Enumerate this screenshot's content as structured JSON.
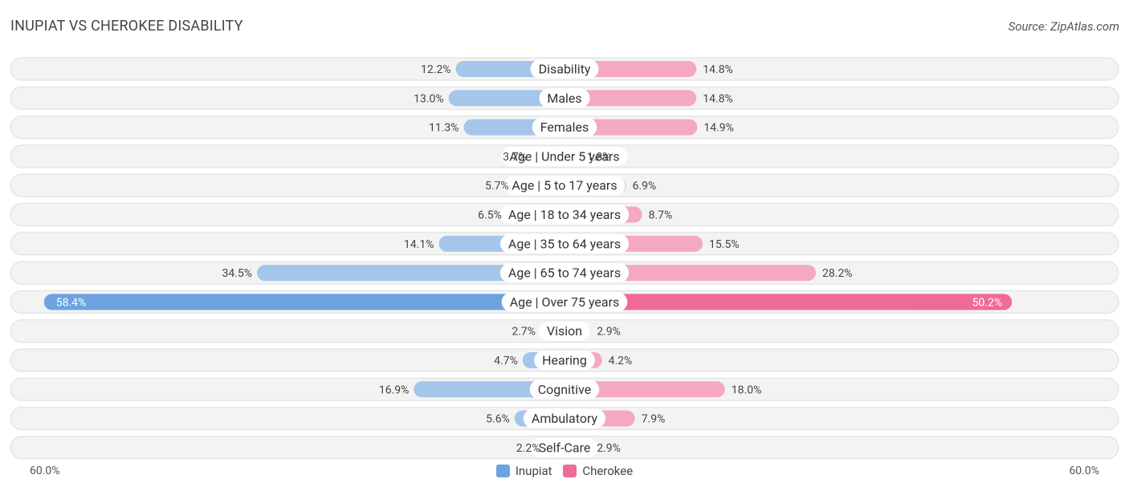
{
  "header": {
    "title": "INUPIAT VS CHEROKEE DISABILITY",
    "source": "Source: ZipAtlas.com"
  },
  "colors": {
    "inupiat_light": "#a4c6ea",
    "inupiat_dark": "#6ca2e0",
    "cherokee_light": "#f5a8c3",
    "cherokee_dark": "#ef6a98"
  },
  "chart_data": {
    "type": "bar",
    "orientation": "horizontal-diverging",
    "categories": [
      "Disability",
      "Males",
      "Females",
      "Age | Under 5 years",
      "Age | 5 to 17 years",
      "Age | 18 to 34 years",
      "Age | 35 to 64 years",
      "Age | 65 to 74 years",
      "Age | Over 75 years",
      "Vision",
      "Hearing",
      "Cognitive",
      "Ambulatory",
      "Self-Care"
    ],
    "series": [
      {
        "name": "Inupiat",
        "values": [
          12.2,
          13.0,
          11.3,
          3.7,
          5.7,
          6.5,
          14.1,
          34.5,
          58.4,
          2.7,
          4.7,
          16.9,
          5.6,
          2.2
        ],
        "labels": [
          "12.2%",
          "13.0%",
          "11.3%",
          "3.7%",
          "5.7%",
          "6.5%",
          "14.1%",
          "34.5%",
          "58.4%",
          "2.7%",
          "4.7%",
          "16.9%",
          "5.6%",
          "2.2%"
        ]
      },
      {
        "name": "Cherokee",
        "values": [
          14.8,
          14.8,
          14.9,
          1.8,
          6.9,
          8.7,
          15.5,
          28.2,
          50.2,
          2.9,
          4.2,
          18.0,
          7.9,
          2.9
        ],
        "labels": [
          "14.8%",
          "14.8%",
          "14.9%",
          "1.8%",
          "6.9%",
          "8.7%",
          "15.5%",
          "28.2%",
          "50.2%",
          "2.9%",
          "4.2%",
          "18.0%",
          "7.9%",
          "2.9%"
        ]
      }
    ],
    "xlim": [
      -60,
      60
    ],
    "axis_labels": {
      "left": "60.0%",
      "right": "60.0%"
    },
    "legend": [
      "Inupiat",
      "Cherokee"
    ]
  }
}
